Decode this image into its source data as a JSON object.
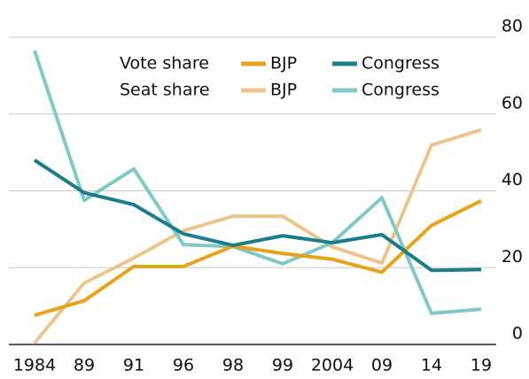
{
  "chart_data": {
    "type": "line",
    "categories": [
      "1984",
      "89",
      "91",
      "96",
      "98",
      "99",
      "2004",
      "09",
      "14",
      "19"
    ],
    "groups": [
      {
        "name": "Vote share",
        "series": [
          {
            "name": "BJP",
            "color": "#e9a31b",
            "values": [
              7.6,
              11.4,
              20.3,
              20.3,
              25.6,
              23.7,
              22.2,
              18.8,
              31,
              37.4
            ]
          },
          {
            "name": "Congress",
            "color": "#1c7d8a",
            "values": [
              48,
              39.5,
              36.4,
              28.8,
              25.8,
              28.3,
              26.5,
              28.6,
              19.3,
              19.5
            ]
          }
        ]
      },
      {
        "name": "Seat share",
        "series": [
          {
            "name": "BJP",
            "color": "#ebc68c",
            "values": [
              0.4,
              16,
              22.5,
              29.6,
              33.4,
              33.4,
              25.4,
              21.2,
              51.9,
              55.9
            ]
          },
          {
            "name": "Congress",
            "color": "#80c9c6",
            "values": [
              76.5,
              37.5,
              45.7,
              26,
              25.5,
              21,
              26.5,
              38.2,
              8.1,
              9.2
            ]
          }
        ]
      }
    ],
    "ylim": [
      0,
      80
    ],
    "yticks": [
      0,
      20,
      40,
      60,
      80
    ],
    "grid": true
  }
}
